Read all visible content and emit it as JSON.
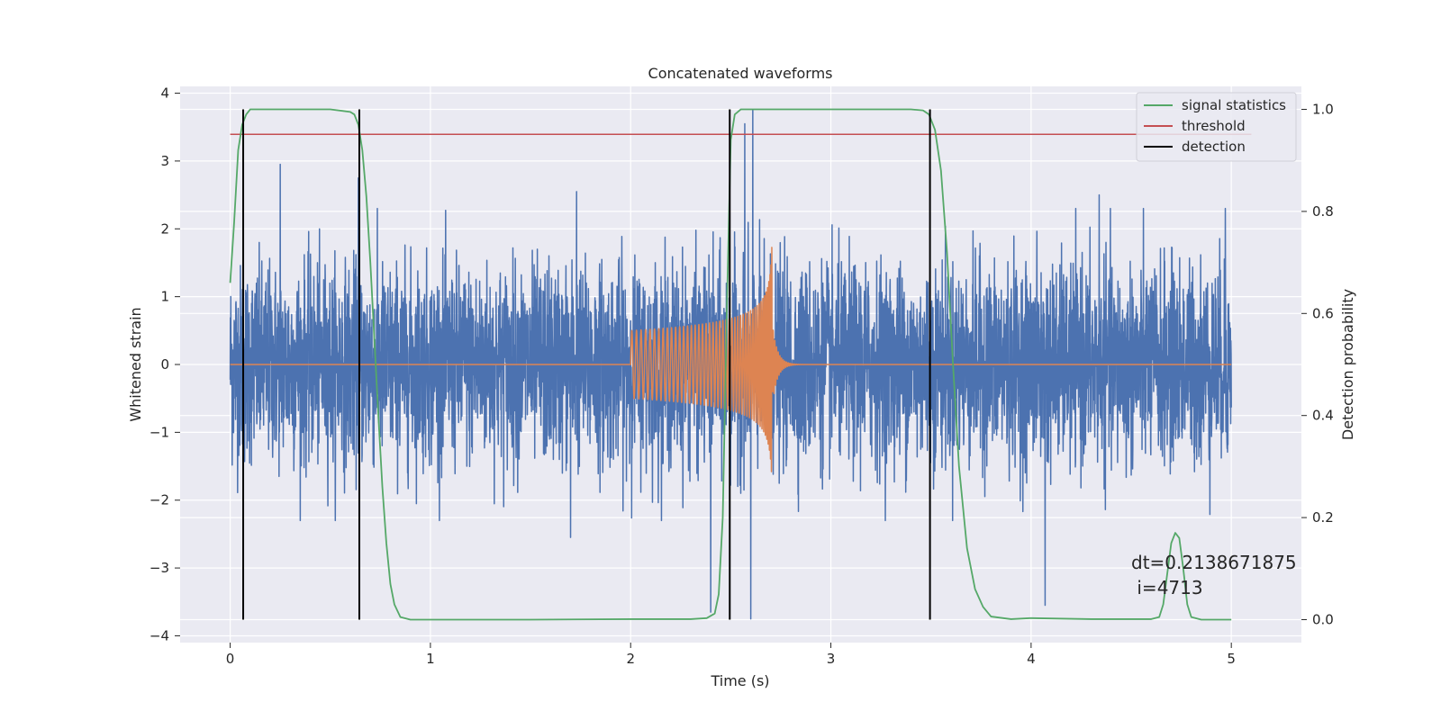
{
  "chart_data": {
    "type": "line",
    "title": "Concatenated waveforms",
    "xlabel": "Time (s)",
    "ylabel": "Whitened strain",
    "y2label": "Detection probability",
    "xlim": [
      -0.25,
      5.35
    ],
    "ylim": [
      -4.1,
      4.1
    ],
    "y2lim": [
      -0.045,
      1.045
    ],
    "grid": true,
    "legend_position": "top-right",
    "xticks": [
      0,
      1,
      2,
      3,
      4,
      5
    ],
    "yticks": [
      -4,
      -3,
      -2,
      -1,
      0,
      1,
      2,
      3,
      4
    ],
    "y2ticks": [
      0.0,
      0.2,
      0.4,
      0.6,
      0.8,
      1.0
    ],
    "colors": {
      "background": "#eaeaf2",
      "grid": "#ffffff",
      "noise": "#4c72b0",
      "signal": "#dd8452",
      "statistics": "#55a868",
      "threshold": "#c44e52",
      "detection": "#000000"
    },
    "series": [
      {
        "name": "",
        "axis": "left",
        "kind": "whitened strain noise",
        "t_range": [
          0,
          5
        ],
        "std": 0.72,
        "peaks": [
          {
            "t": 0.25,
            "y": 2.95
          },
          {
            "t": 0.64,
            "y": 2.75
          },
          {
            "t": 1.7,
            "y": -2.55
          },
          {
            "t": 1.73,
            "y": 2.55
          },
          {
            "t": 2.4,
            "y": -3.65
          },
          {
            "t": 2.57,
            "y": 3.55
          },
          {
            "t": 2.61,
            "y": 3.75
          },
          {
            "t": 2.6,
            "y": -3.75
          },
          {
            "t": 4.07,
            "y": -3.55
          },
          {
            "t": 4.34,
            "y": 2.5
          },
          {
            "t": 4.97,
            "y": 2.3
          }
        ]
      },
      {
        "name": "",
        "axis": "left",
        "kind": "injected chirp",
        "t_start": 2.0,
        "t_merger": 2.71,
        "amp_start": 0.5,
        "amp_peak": 3.3,
        "min_peak": -2.45
      },
      {
        "name": "signal statistics",
        "axis": "right",
        "x": [
          0,
          0.02,
          0.04,
          0.06,
          0.08,
          0.1,
          0.12,
          0.15,
          0.2,
          0.3,
          0.5,
          0.6,
          0.62,
          0.64,
          0.66,
          0.68,
          0.7,
          0.72,
          0.74,
          0.76,
          0.78,
          0.8,
          0.82,
          0.85,
          0.9,
          1.0,
          1.5,
          2.0,
          2.3,
          2.38,
          2.42,
          2.44,
          2.46,
          2.48,
          2.5,
          2.52,
          2.55,
          2.6,
          3.0,
          3.4,
          3.46,
          3.49,
          3.52,
          3.55,
          3.58,
          3.61,
          3.64,
          3.68,
          3.72,
          3.76,
          3.8,
          3.9,
          4.0,
          4.3,
          4.6,
          4.64,
          4.66,
          4.68,
          4.7,
          4.72,
          4.74,
          4.76,
          4.78,
          4.8,
          4.85,
          5.0
        ],
        "y": [
          0.66,
          0.78,
          0.92,
          0.97,
          0.99,
          1.0,
          1.0,
          1.0,
          1.0,
          1.0,
          1.0,
          0.995,
          0.99,
          0.97,
          0.92,
          0.83,
          0.7,
          0.55,
          0.4,
          0.26,
          0.15,
          0.07,
          0.03,
          0.005,
          0.0,
          0.0,
          0.0,
          0.001,
          0.001,
          0.003,
          0.012,
          0.05,
          0.2,
          0.6,
          0.94,
          0.99,
          1.0,
          1.0,
          1.0,
          1.0,
          0.998,
          0.99,
          0.96,
          0.88,
          0.72,
          0.5,
          0.3,
          0.14,
          0.06,
          0.025,
          0.006,
          0.001,
          0.003,
          0.001,
          0.001,
          0.005,
          0.03,
          0.09,
          0.15,
          0.17,
          0.16,
          0.1,
          0.03,
          0.005,
          0.0,
          0.0
        ]
      },
      {
        "name": "threshold",
        "axis": "right",
        "x": [
          0,
          5.1
        ],
        "y": [
          0.951,
          0.951
        ]
      },
      {
        "name": "detection",
        "axis": "right",
        "vlines": [
          0.065,
          0.645,
          2.495,
          3.495
        ],
        "y_range": [
          0.0,
          1.0
        ]
      }
    ],
    "annotations": [
      {
        "x": 4.5,
        "y": 0.1,
        "axis": "right",
        "text": "dt=0.2138671875\n i=4713"
      }
    ]
  }
}
